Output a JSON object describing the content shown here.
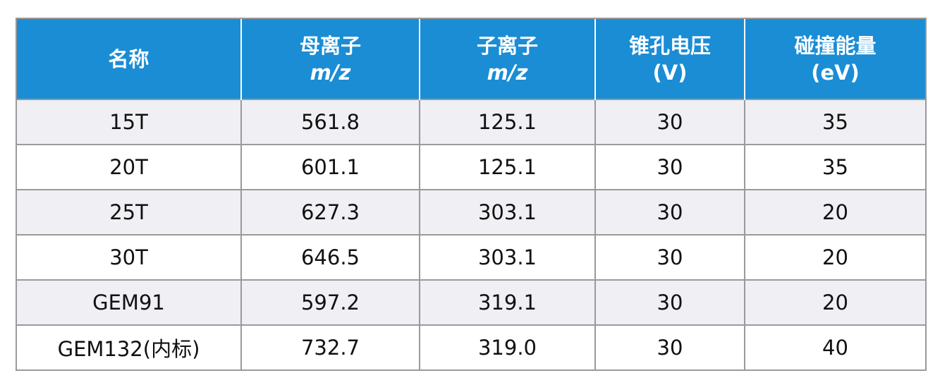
{
  "table": {
    "columns": [
      {
        "title": "名称"
      },
      {
        "title": "母离子",
        "unit": "m/z",
        "unit_italic": true
      },
      {
        "title": "子离子",
        "unit": "m/z",
        "unit_italic": true
      },
      {
        "title": "锥孔电压",
        "unit": "(V)",
        "unit_italic": false
      },
      {
        "title": "碰撞能量",
        "unit": "(eV)",
        "unit_italic": false
      }
    ],
    "rows": [
      [
        "15T",
        "561.8",
        "125.1",
        "30",
        "35"
      ],
      [
        "20T",
        "601.1",
        "125.1",
        "30",
        "35"
      ],
      [
        "25T",
        "627.3",
        "303.1",
        "30",
        "20"
      ],
      [
        "30T",
        "646.5",
        "303.1",
        "30",
        "20"
      ],
      [
        "GEM91",
        "597.2",
        "319.1",
        "30",
        "20"
      ],
      [
        "GEM132(内标)",
        "732.7",
        "319.0",
        "30",
        "40"
      ]
    ],
    "header_color": "#1a8dd5",
    "stripe_color": "#efeff4"
  }
}
